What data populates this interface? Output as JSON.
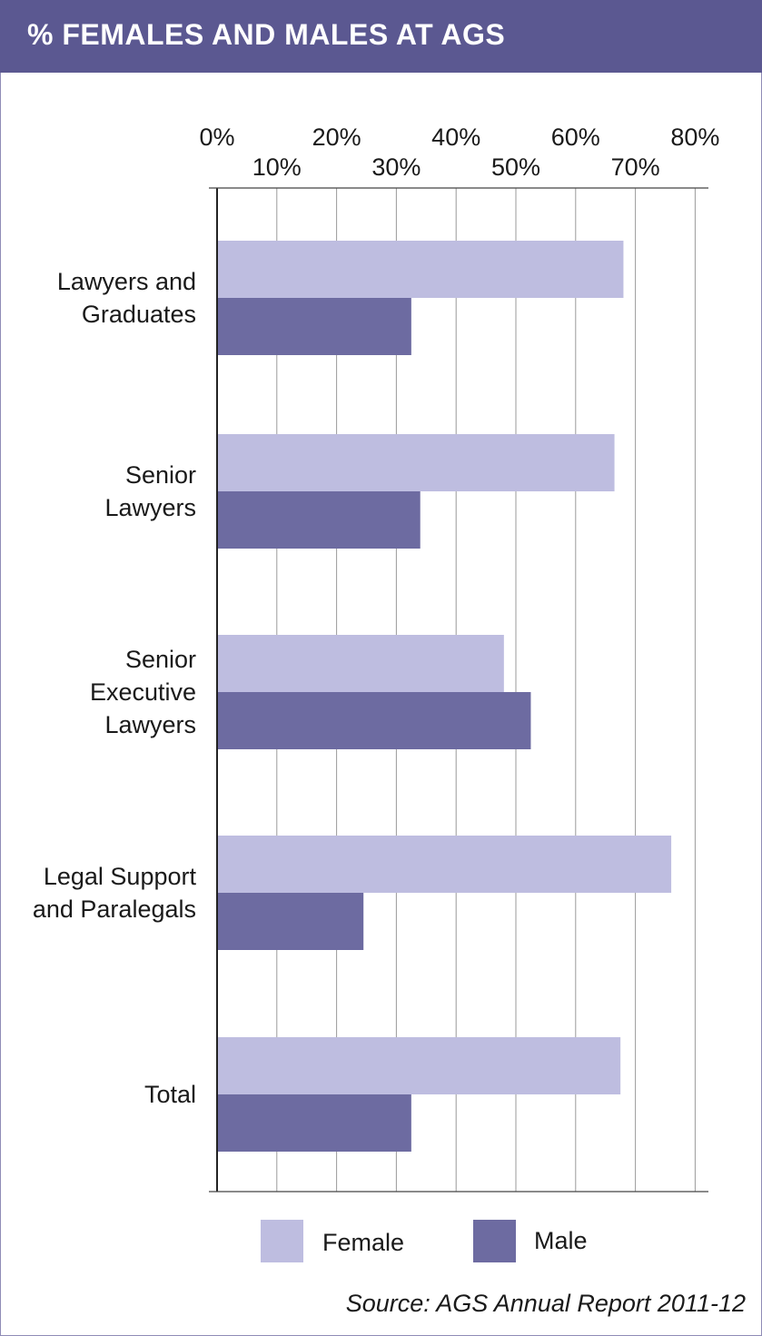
{
  "title": "% FEMALES AND MALES AT AGS",
  "source": "Source: AGS Annual Report 2011-12",
  "colors": {
    "header": "#5b5891",
    "female": "#bebde0",
    "male": "#6d6ba1",
    "grid": "#9a9a9a"
  },
  "chart_data": {
    "type": "bar",
    "orientation": "horizontal",
    "categories": [
      [
        "Lawyers and",
        "Graduates"
      ],
      [
        "Senior",
        "Lawyers"
      ],
      [
        "Senior",
        "Executive",
        "Lawyers"
      ],
      [
        "Legal Support",
        "and Paralegals"
      ],
      [
        "Total"
      ]
    ],
    "series": [
      {
        "name": "Female",
        "values": [
          68,
          66.5,
          48,
          76,
          67.5
        ]
      },
      {
        "name": "Male",
        "values": [
          32.5,
          34,
          52.5,
          24.5,
          32.5
        ]
      }
    ],
    "xlim": [
      0,
      80
    ],
    "xticks": [
      0,
      10,
      20,
      30,
      40,
      50,
      60,
      70,
      80
    ],
    "xtick_labels": [
      "0%",
      "10%",
      "20%",
      "30%",
      "40%",
      "50%",
      "60%",
      "70%",
      "80%"
    ],
    "grid": true,
    "legend_position": "bottom"
  }
}
